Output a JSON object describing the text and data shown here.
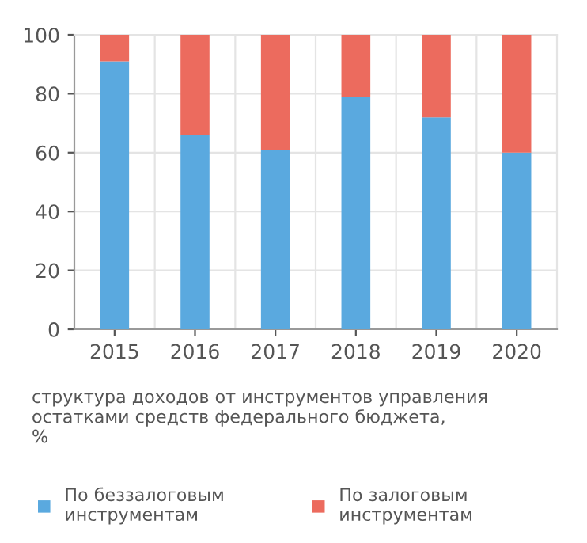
{
  "chart_data": {
    "type": "bar",
    "title": "структура доходов от инструментов управления\nостатками средств федерального бюджета,\n%",
    "categories": [
      "2015",
      "2016",
      "2017",
      "2018",
      "2019",
      "2020"
    ],
    "series": [
      {
        "name": "По беззалоговым\nинструментам",
        "color": "#5aa9df",
        "values": [
          91,
          66,
          61,
          79,
          72,
          60
        ]
      },
      {
        "name": "По залоговым\nинструментам",
        "color": "#ec6b5e",
        "values": [
          9,
          34,
          39,
          21,
          28,
          40
        ]
      }
    ],
    "stacked": true,
    "ylim": [
      0,
      100
    ],
    "yticks": [
      0,
      20,
      40,
      60,
      80,
      100
    ],
    "grid": true,
    "legend": "bottom"
  }
}
